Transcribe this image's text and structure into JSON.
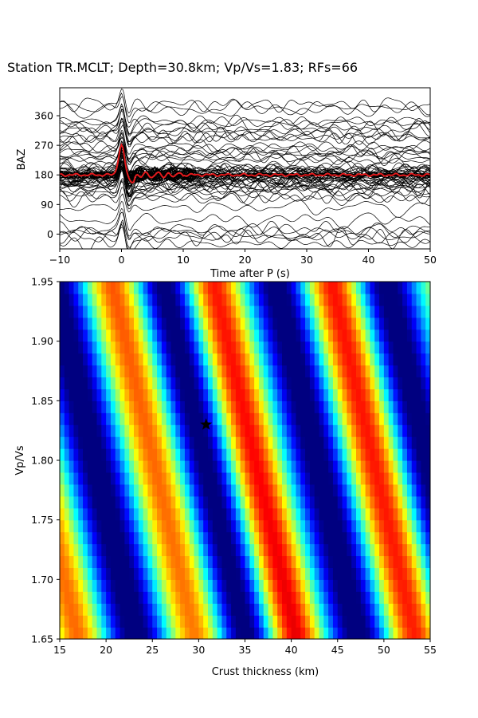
{
  "chart_data": [
    {
      "type": "line",
      "title": "Station TR.MCLT; Depth=30.8km; Vp/Vs=1.83; RFs=66",
      "xlabel": "Time after P (s)",
      "ylabel": "BAZ",
      "xlim": [
        -10,
        50
      ],
      "ylim": [
        -45,
        445
      ],
      "xticks": [
        "−10",
        "0",
        "10",
        "20",
        "30",
        "40",
        "50"
      ],
      "xtick_values": [
        -10,
        0,
        10,
        20,
        30,
        40,
        50
      ],
      "yticks": [
        "0",
        "90",
        "180",
        "270",
        "360"
      ],
      "ytick_values": [
        0,
        90,
        180,
        270,
        360
      ],
      "trace_count": 66,
      "trace_color": "#000000",
      "stack_color": "#e41a1c",
      "stack_baseline": 180,
      "stack_peak": {
        "x": 0.0,
        "y": 270
      },
      "grid": false
    },
    {
      "type": "heatmap",
      "xlabel": "Crust thickness (km)",
      "ylabel": "Vp/Vs",
      "xlim": [
        15,
        55
      ],
      "ylim": [
        1.65,
        1.95
      ],
      "xticks": [
        "15",
        "20",
        "25",
        "30",
        "35",
        "40",
        "45",
        "50",
        "55"
      ],
      "xtick_values": [
        15,
        20,
        25,
        30,
        35,
        40,
        45,
        50,
        55
      ],
      "yticks": [
        "1.65",
        "1.70",
        "1.75",
        "1.80",
        "1.85",
        "1.90",
        "1.95"
      ],
      "ytick_values": [
        1.65,
        1.7,
        1.75,
        1.8,
        1.85,
        1.9,
        1.95
      ],
      "colormap": "jet",
      "best_fit": {
        "thickness_km": 30.8,
        "vpvs": 1.83,
        "marker": "star"
      },
      "grid": false
    }
  ]
}
